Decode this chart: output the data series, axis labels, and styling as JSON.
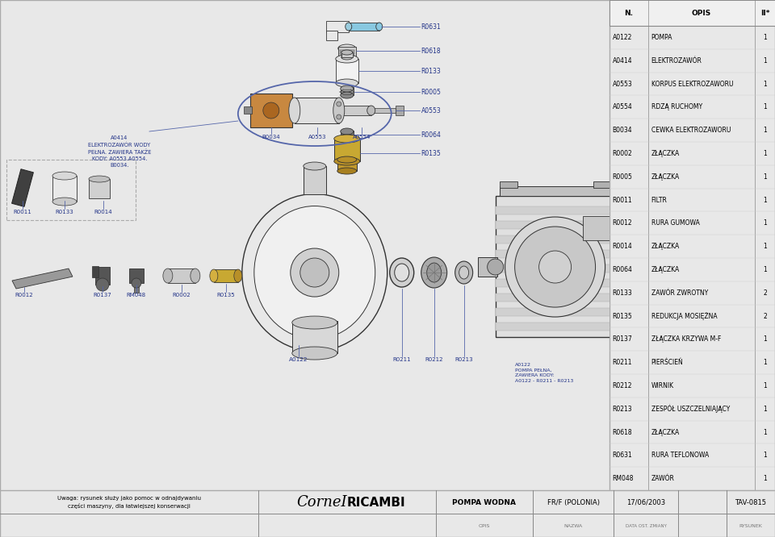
{
  "bg": "#e8e8e8",
  "white": "#ffffff",
  "dark": "#333333",
  "mid": "#888888",
  "light": "#d0d0d0",
  "blue_line": "#5566aa",
  "brown_coil": "#c88840",
  "blue_tube": "#88c8e0",
  "parts_list": [
    {
      "code": "A0122",
      "name": "POMPA",
      "qty": "1"
    },
    {
      "code": "A0414",
      "name": "ELEKTROZAWÓR",
      "qty": "1"
    },
    {
      "code": "A0553",
      "name": "KORPUS ELEKTROZAWORU",
      "qty": "1"
    },
    {
      "code": "A0554",
      "name": "RDZĄ RUCHOMY",
      "qty": "1"
    },
    {
      "code": "B0034",
      "name": "CEWKA ELEKTROZAWORU",
      "qty": "1"
    },
    {
      "code": "R0002",
      "name": "ZŁĄCZKA",
      "qty": "1"
    },
    {
      "code": "R0005",
      "name": "ZŁĄCZKA",
      "qty": "1"
    },
    {
      "code": "R0011",
      "name": "FILTR",
      "qty": "1"
    },
    {
      "code": "R0012",
      "name": "RURA GUMOWA",
      "qty": "1"
    },
    {
      "code": "R0014",
      "name": "ZŁĄCZKA",
      "qty": "1"
    },
    {
      "code": "R0064",
      "name": "ZŁĄCZKA",
      "qty": "1"
    },
    {
      "code": "R0133",
      "name": "ZAWÓR ZWROTNY",
      "qty": "2"
    },
    {
      "code": "R0135",
      "name": "REDUKCJA MOSIĘŻNA",
      "qty": "2"
    },
    {
      "code": "R0137",
      "name": "ZŁĄCZKA KRZYWA M-F",
      "qty": "1"
    },
    {
      "code": "R0211",
      "name": "PIERŚCIEŃ",
      "qty": "1"
    },
    {
      "code": "R0212",
      "name": "WIRNIK",
      "qty": "1"
    },
    {
      "code": "R0213",
      "name": "ZESPÓŁ USZCZELNIAJĄCY",
      "qty": "1"
    },
    {
      "code": "R0618",
      "name": "ZŁĄCZKA",
      "qty": "1"
    },
    {
      "code": "R0631",
      "name": "RURA TEFLONOWA",
      "qty": "1"
    },
    {
      "code": "RM048",
      "name": "ZAWÓR",
      "qty": "1"
    }
  ],
  "footer_note": "Uwaga: rysunek służy jako pomoc w odnajdywaniu\nczęści maszyny, dla łatwiejszej konserwacji",
  "product_name": "POMPA WODNA",
  "standard": "FR/F (POLONIA)",
  "date": "17/06/2003",
  "drawing_num": "TAV-0815",
  "a0414_note": "A0414\nELEKTROZAWÓR WODY\nPEŁNA. ZAWIERA TAKŻE\nKODY: A0553.A0554.\nB0034.",
  "a0122_bottom_note": "A0122\nPOMPA PEŁNA,\nZAWIERA KODY:\nA0122 - R0211 - R0213"
}
